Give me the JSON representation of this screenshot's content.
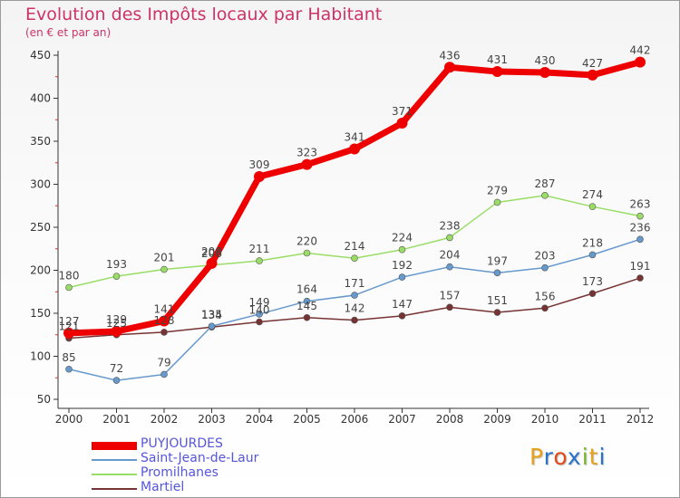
{
  "title": "Evolution des Impôts locaux par Habitant",
  "subtitle": "(en € et par an)",
  "logo": {
    "text": "Proxiti",
    "letters": [
      "P",
      "r",
      "o",
      "x",
      "i",
      "t",
      "i"
    ],
    "colors": [
      "#e6a21b",
      "#2a72c9",
      "#e24a1e",
      "#2a72c9",
      "#79b82b",
      "#e6a21b",
      "#2a72c9"
    ]
  },
  "chart_data": {
    "type": "line",
    "x": [
      "2000",
      "2001",
      "2002",
      "2003",
      "2004",
      "2005",
      "2006",
      "2007",
      "2008",
      "2009",
      "2010",
      "2011",
      "2012"
    ],
    "ylim": [
      50,
      450
    ],
    "yticks": [
      50,
      100,
      150,
      200,
      250,
      300,
      350,
      400,
      450
    ],
    "grid": false,
    "legend": "bottom-left",
    "series": [
      {
        "name": "PUYJOURDES",
        "color": "#ee0000",
        "values": [
          127,
          129,
          141,
          208,
          309,
          323,
          341,
          371,
          436,
          431,
          430,
          427,
          442
        ]
      },
      {
        "name": "Saint-Jean-de-Laur",
        "color": "#6699cc",
        "values": [
          85,
          72,
          79,
          135,
          149,
          164,
          171,
          192,
          204,
          197,
          203,
          218,
          236
        ]
      },
      {
        "name": "Promilhanes",
        "color": "#99dd66",
        "values": [
          180,
          193,
          201,
          206,
          211,
          220,
          214,
          224,
          238,
          279,
          287,
          274,
          263
        ]
      },
      {
        "name": "Martiel",
        "color": "#773333",
        "values": [
          121,
          125,
          128,
          134,
          140,
          145,
          142,
          147,
          157,
          151,
          156,
          173,
          191
        ]
      }
    ]
  }
}
